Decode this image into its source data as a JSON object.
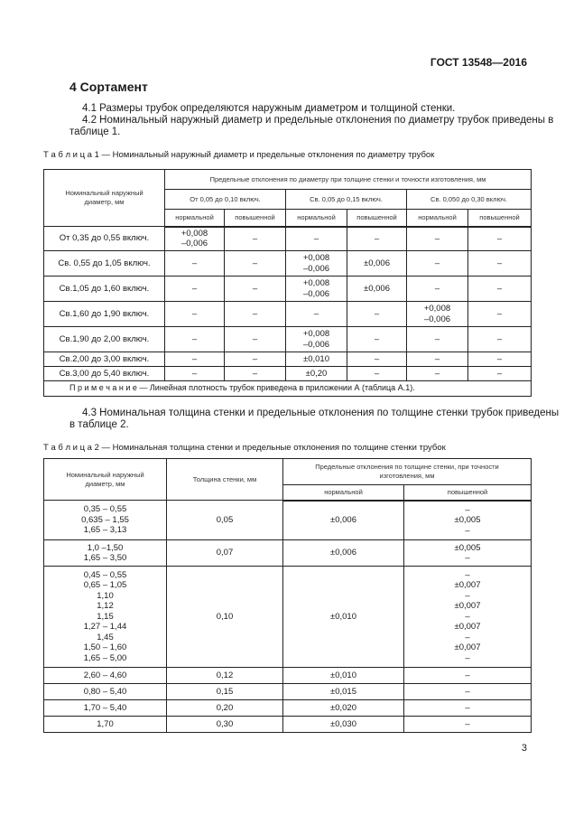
{
  "header": {
    "doc_id": "ГОСТ 13548—2016"
  },
  "section_title": "4 Сортамент",
  "paragraphs": {
    "p41": "4.1 Размеры трубок определяются наружным диаметром и толщиной стенки.",
    "p42a": "4.2  Номинальный наружный диаметр и предельные отклонения по диаметру трубок приведены в",
    "p42b": "таблице 1.",
    "p43a": "4.3 Номинальная толщина стенки и предельные отклонения по толщине стенки трубок приведены",
    "p43b": "в таблице 2."
  },
  "table1": {
    "caption": "Т а б л и ц а  1 — Номинальный наружный диаметр и предельные отклонения по диаметру трубок",
    "col0": "Номинальный наружный\nдиаметр, мм",
    "group": "Предельные отклонения по диаметру при толщине стенки и точности изготовления, мм",
    "subgroups": [
      "От 0,05 до 0,10 включ.",
      "Св. 0,05 до 0,15 включ.",
      "Св. 0,050 до 0,30 включ."
    ],
    "precision": [
      "нормальной",
      "повышенной",
      "нормальной",
      "повышенной",
      "нормальной",
      "повышенной"
    ],
    "rows": [
      [
        "От 0,35 до  0,55 включ.",
        "+0,008\n–0,006",
        "–",
        "–",
        "–",
        "–",
        "–"
      ],
      [
        "Св. 0,55 до 1,05 включ.",
        "–",
        "–",
        "+0,008\n–0,006",
        "±0,006",
        "–",
        "–"
      ],
      [
        "Св.1,05 до 1,60 включ.",
        "–",
        "–",
        "+0,008\n–0,006",
        "±0,006",
        "–",
        "–"
      ],
      [
        "Св.1,60 до 1,90 включ.",
        "–",
        "–",
        "–",
        "–",
        "+0,008\n–0,006",
        "–"
      ],
      [
        "Св.1,90 до 2,00 включ.",
        "–",
        "–",
        "+0,008\n–0,006",
        "–",
        "–",
        "–"
      ],
      [
        "Св.2,00 до 3,00 включ.",
        "–",
        "–",
        "±0,010",
        "–",
        "–",
        "–"
      ],
      [
        "Св.3,00 до 5,40 включ.",
        "–",
        "–",
        "±0,20",
        "–",
        "–",
        "–"
      ]
    ],
    "note": "П р и м е ч а н и е  — Линейная плотность трубок приведена в приложении А (таблица А.1)."
  },
  "table2": {
    "caption": "Т а б л и ц а  2 — Номинальная толщина стенки и предельные отклонения по толщине стенки трубок",
    "col0": "Номинальный наружный\nдиаметр, мм",
    "col1": "Толщина стенки, мм",
    "group": "Предельные отклонения по толщине стенки, при точности\nизготовления, мм",
    "precision": [
      "нормальной",
      "повышенной"
    ],
    "rows": [
      [
        "0,35 – 0,55\n0,635 – 1,55\n1,65 – 3,13",
        "0,05",
        "±0,006",
        "–\n±0,005\n–"
      ],
      [
        "1,0 –1,50\n1,65 – 3,50",
        "0,07",
        "±0,006",
        "±0,005\n–"
      ],
      [
        "0,45 – 0,55\n0,65 – 1,05\n1,10\n1,12\n1,15\n1,27 – 1,44\n1,45\n1,50 – 1,60\n1,65 – 5,00",
        "0,10",
        "±0,010",
        "–\n±0,007\n–\n±0,007\n–\n±0,007\n–\n±0,007\n–"
      ],
      [
        "2,60 – 4,60",
        "0,12",
        "±0,010",
        "–"
      ],
      [
        "0,80 – 5,40",
        "0,15",
        "±0,015",
        "–"
      ],
      [
        "1,70 – 5,40",
        "0,20",
        "±0,020",
        "–"
      ],
      [
        "1,70",
        "0,30",
        "±0,030",
        "–"
      ]
    ]
  },
  "page_number": "3"
}
